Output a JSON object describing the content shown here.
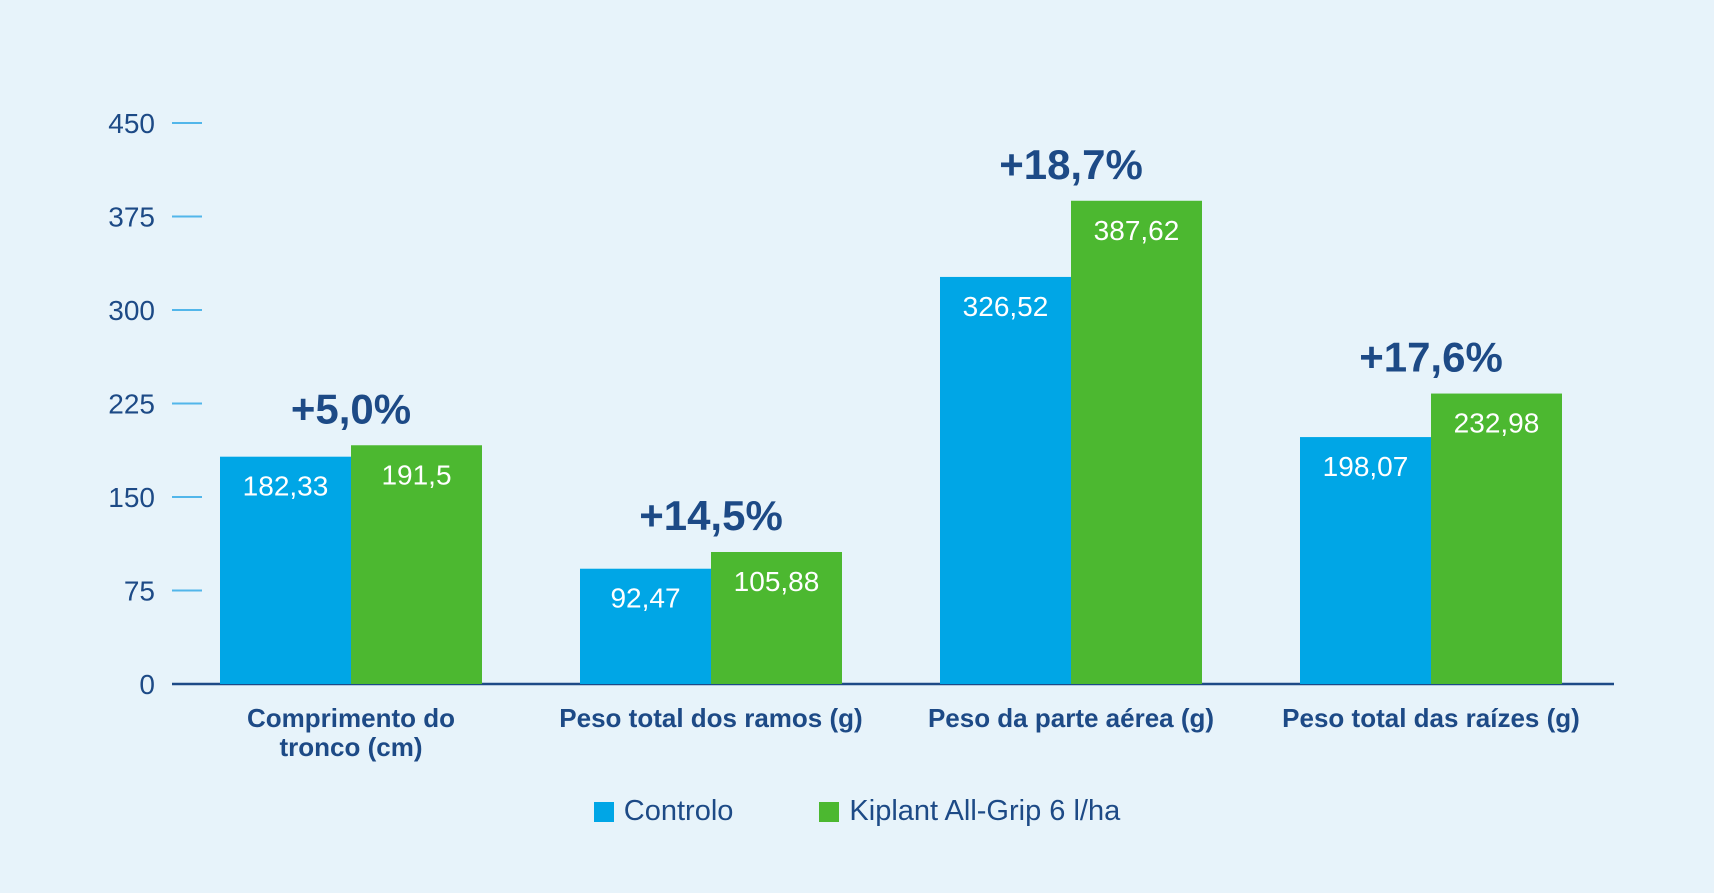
{
  "chart_data": {
    "type": "bar",
    "categories": [
      "Comprimento do tronco (cm)",
      "Peso total dos ramos (g)",
      "Peso da parte aérea (g)",
      "Peso total das raízes (g)"
    ],
    "category_lines": [
      [
        "Comprimento do",
        "tronco (cm)"
      ],
      [
        "Peso total dos ramos (g)"
      ],
      [
        "Peso da parte aérea (g)"
      ],
      [
        "Peso total das raízes (g)"
      ]
    ],
    "series": [
      {
        "name": "Controlo",
        "color": "#00a6e6",
        "values": [
          182.33,
          92.47,
          326.52,
          198.07
        ],
        "labels": [
          "182,33",
          "92,47",
          "326,52",
          "198,07"
        ]
      },
      {
        "name": "Kiplant All-Grip 6 l/ha",
        "color": "#4cb830",
        "values": [
          191.5,
          105.88,
          387.62,
          232.98
        ],
        "labels": [
          "191,5",
          "105,88",
          "387,62",
          "232,98"
        ]
      }
    ],
    "annotations": [
      "+5,0%",
      "+14,5%",
      "+18,7%",
      "+17,6%"
    ],
    "yticks": [
      "0",
      "75",
      "150",
      "225",
      "300",
      "375",
      "450"
    ],
    "ylim": [
      0,
      450
    ],
    "grid": false,
    "legend": "bottom",
    "colors": {
      "text": "#1d4a86",
      "tick": "#52b6ea",
      "axis": "#1d4a86"
    }
  }
}
